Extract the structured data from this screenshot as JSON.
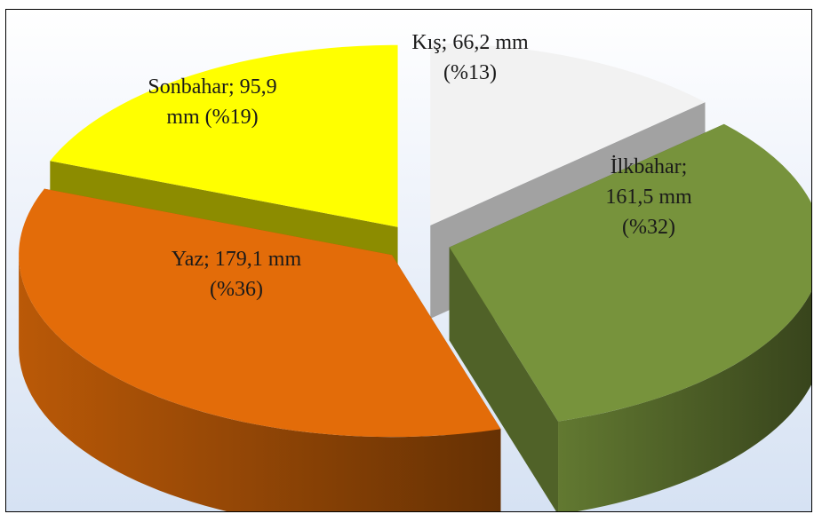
{
  "chart_data": {
    "type": "pie",
    "title": "",
    "legend": "none",
    "slices": [
      {
        "name": "Kış",
        "value": 66.2,
        "percent": 13,
        "label_lines": [
          "Kış; 66,2 mm",
          "(%13)"
        ],
        "color": "#f2f2f2"
      },
      {
        "name": "İlkbahar",
        "value": 161.5,
        "percent": 32,
        "label_lines": [
          "İlkbahar;",
          "161,5 mm",
          "(%32)"
        ],
        "color": "#77933c"
      },
      {
        "name": "Yaz",
        "value": 179.1,
        "percent": 36,
        "label_lines": [
          "Yaz; 179,1 mm",
          "(%36)"
        ],
        "color": "#e36c09"
      },
      {
        "name": "Sonbahar",
        "value": 95.9,
        "percent": 19,
        "label_lines": [
          "Sonbahar; 95,9",
          "mm (%19)"
        ],
        "color": "#ffff00"
      }
    ]
  }
}
